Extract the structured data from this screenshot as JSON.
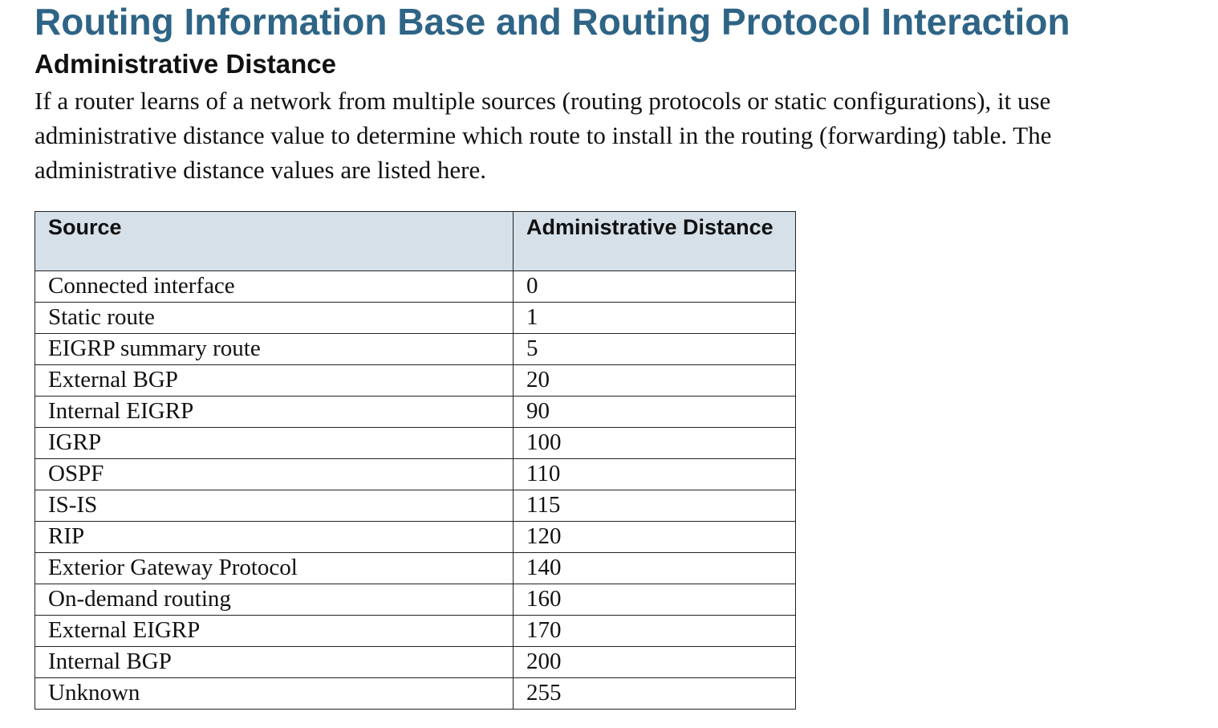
{
  "document": {
    "title": "Routing Information Base and Routing Protocol Interaction",
    "subtitle": "Administrative Distance",
    "paragraph_lines": [
      "If a router learns of a network from multiple sources (routing protocols or static configurations), it use",
      "administrative distance value to determine which route to install in the routing (forwarding) table. The",
      "administrative distance values are listed here."
    ]
  },
  "table": {
    "headers": [
      "Source",
      "Administrative Distance"
    ],
    "rows": [
      {
        "source": "Connected interface",
        "distance": "0"
      },
      {
        "source": "Static route",
        "distance": "1"
      },
      {
        "source": "EIGRP summary route",
        "distance": "5"
      },
      {
        "source": "External BGP",
        "distance": "20"
      },
      {
        "source": "Internal EIGRP",
        "distance": "90"
      },
      {
        "source": "IGRP",
        "distance": "100"
      },
      {
        "source": "OSPF",
        "distance": "110"
      },
      {
        "source": "IS-IS",
        "distance": "115"
      },
      {
        "source": "RIP",
        "distance": "120"
      },
      {
        "source": "Exterior Gateway Protocol",
        "distance": "140"
      },
      {
        "source": "On-demand routing",
        "distance": "160"
      },
      {
        "source": "External EIGRP",
        "distance": "170"
      },
      {
        "source": "Internal BGP",
        "distance": "200"
      },
      {
        "source": "Unknown",
        "distance": "255"
      }
    ]
  },
  "colors": {
    "title": "#2e6486",
    "header_bg": "#d6e0e8",
    "text": "#111111"
  }
}
